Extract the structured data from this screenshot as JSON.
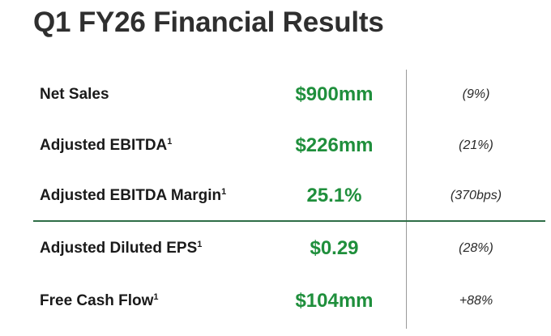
{
  "title": "Q1 FY26 Financial Results",
  "metrics": [
    {
      "label": "Net Sales",
      "footnote": "",
      "value": "$900mm",
      "change": "(9%)"
    },
    {
      "label": "Adjusted EBITDA",
      "footnote": "1",
      "value": "$226mm",
      "change": "(21%)"
    },
    {
      "label": "Adjusted EBITDA Margin",
      "footnote": "1",
      "value": "25.1%",
      "change": "(370bps)"
    },
    {
      "label": "Adjusted Diluted EPS",
      "footnote": "1",
      "value": "$0.29",
      "change": "(28%)"
    },
    {
      "label": "Free Cash Flow",
      "footnote": "1",
      "value": "$104mm",
      "change": "+88%"
    }
  ],
  "colors": {
    "title": "#2f2f2f",
    "value": "#1f8f3c",
    "divider": "#2f6e47",
    "column_rule": "#9a9a9a"
  }
}
